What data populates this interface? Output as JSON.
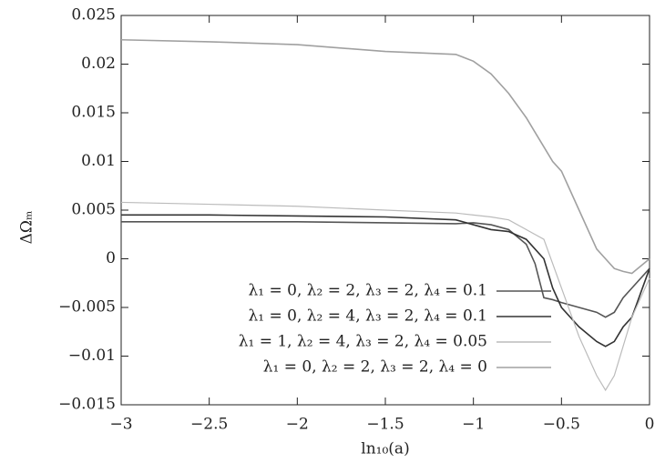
{
  "chart_data": {
    "type": "line",
    "xlabel": "ln₁₀(a)",
    "ylabel": "ΔΩₘ",
    "x": [
      -3,
      -2.5,
      -2,
      -1.5,
      -1.1,
      -1.0,
      -0.9,
      -0.8,
      -0.7,
      -0.65,
      -0.6,
      -0.55,
      -0.5,
      -0.4,
      -0.3,
      -0.25,
      -0.2,
      -0.15,
      -0.1,
      0
    ],
    "series": [
      {
        "name": "λ₁ = 0, λ₂ = 2, λ₃ = 2, λ₄ = 0.1",
        "color": "#555555",
        "values": [
          0.0038,
          0.0038,
          0.0038,
          0.0037,
          0.0036,
          0.0037,
          0.0035,
          0.003,
          0.0015,
          -0.0005,
          -0.004,
          -0.0042,
          -0.0045,
          -0.005,
          -0.0055,
          -0.006,
          -0.0055,
          -0.004,
          -0.003,
          -0.001
        ]
      },
      {
        "name": "λ₁ = 0, λ₂ = 4, λ₃ = 2, λ₄ = 0.1",
        "color": "#333333",
        "values": [
          0.0045,
          0.0045,
          0.0044,
          0.0043,
          0.004,
          0.0035,
          0.003,
          0.0028,
          0.002,
          0.001,
          0.0,
          -0.003,
          -0.005,
          -0.007,
          -0.0085,
          -0.009,
          -0.0085,
          -0.007,
          -0.006,
          -0.001
        ]
      },
      {
        "name": "λ₁ = 1, λ₂ = 4, λ₃ = 2, λ₄ = 0.05",
        "color": "#bbbbbb",
        "values": [
          0.0058,
          0.0056,
          0.0054,
          0.005,
          0.0047,
          0.0045,
          0.0043,
          0.004,
          0.003,
          0.0025,
          0.002,
          -0.0005,
          -0.003,
          -0.008,
          -0.012,
          -0.0135,
          -0.012,
          -0.009,
          -0.006,
          -0.002
        ]
      },
      {
        "name": "λ₁ = 0, λ₂ = 2, λ₃ = 2, λ₄ = 0",
        "color": "#a0a0a0",
        "values": [
          0.0225,
          0.0223,
          0.022,
          0.0213,
          0.021,
          0.0203,
          0.019,
          0.017,
          0.0145,
          0.013,
          0.0115,
          0.01,
          0.009,
          0.005,
          0.001,
          0.0,
          -0.001,
          -0.0013,
          -0.0015,
          0.0
        ]
      }
    ],
    "xlim": [
      -3,
      0
    ],
    "ylim": [
      -0.015,
      0.025
    ],
    "xticks": [
      {
        "value": -3,
        "label": "−3"
      },
      {
        "value": -2.5,
        "label": "−2.5"
      },
      {
        "value": -2,
        "label": "−2"
      },
      {
        "value": -1.5,
        "label": "−1.5"
      },
      {
        "value": -1,
        "label": "−1"
      },
      {
        "value": -0.5,
        "label": "−0.5"
      },
      0
    ],
    "yticks": [
      {
        "value": -0.015,
        "label": "−0.015"
      },
      {
        "value": -0.01,
        "label": "−0.01"
      },
      {
        "value": -0.005,
        "label": "−0.005"
      },
      0,
      0.005,
      0.01,
      0.015,
      0.02,
      0.025
    ],
    "legend": "lower right"
  }
}
